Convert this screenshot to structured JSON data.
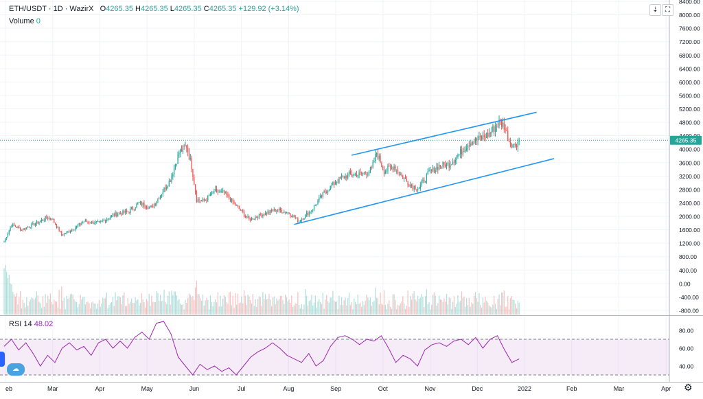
{
  "legend": {
    "symbol": "ETH/USDT · 1D · WazirX",
    "open_label": "O",
    "open": "4265.35",
    "high_label": "H",
    "high": "4265.35",
    "low_label": "L",
    "low": "4265.35",
    "close_label": "C",
    "close": "4265.35",
    "change": "+129.92 (+3.14%)",
    "volume_label": "Volume",
    "volume": "0"
  },
  "rsi_legend": {
    "label": "RSI 14",
    "value": "48.02"
  },
  "last_price_label": "4265.35",
  "colors": {
    "up": "#26a69a",
    "down": "#ef5350",
    "channel": "#2196f3",
    "rsi_line": "#9c27b0",
    "rsi_band": "#9c27b0",
    "last_price": "#26a69a"
  },
  "icons": {
    "arrow_down": "⇣",
    "maximize": "⛶",
    "settings": "⚙",
    "indicator": "☁"
  },
  "chart_data": [
    {
      "type": "candlestick",
      "title": "ETH/USDT · 1D · WazirX",
      "y_ticks": [
        "8400.00",
        "8000.00",
        "7600.00",
        "7200.00",
        "6800.00",
        "6400.00",
        "6000.00",
        "5600.00",
        "5200.00",
        "4800.00",
        "4400.00",
        "4000.00",
        "3600.00",
        "3200.00",
        "2800.00",
        "2400.00",
        "2000.00",
        "1600.00",
        "1200.00",
        "800.00",
        "400.00",
        "0.00",
        "-400.00",
        "-800.00"
      ],
      "y_range": [
        -800,
        8400
      ],
      "x_ticks": [
        "eb",
        "Mar",
        "Apr",
        "May",
        "Jun",
        "Jul",
        "Aug",
        "Sep",
        "Oct",
        "Nov",
        "Dec",
        "2022",
        "Feb",
        "Mar",
        "Apr"
      ],
      "anchors": [
        {
          "day": 0,
          "price": 1250
        },
        {
          "day": 6,
          "price": 1750
        },
        {
          "day": 14,
          "price": 1600
        },
        {
          "day": 26,
          "price": 1800
        },
        {
          "day": 34,
          "price": 1960
        },
        {
          "day": 38,
          "price": 1950
        },
        {
          "day": 46,
          "price": 1450
        },
        {
          "day": 54,
          "price": 1600
        },
        {
          "day": 64,
          "price": 1850
        },
        {
          "day": 76,
          "price": 1800
        },
        {
          "day": 88,
          "price": 2050
        },
        {
          "day": 100,
          "price": 2150
        },
        {
          "day": 108,
          "price": 2400
        },
        {
          "day": 118,
          "price": 2250
        },
        {
          "day": 126,
          "price": 2700
        },
        {
          "day": 133,
          "price": 3100
        },
        {
          "day": 140,
          "price": 3900
        },
        {
          "day": 146,
          "price": 4100
        },
        {
          "day": 150,
          "price": 3500
        },
        {
          "day": 154,
          "price": 2500
        },
        {
          "day": 160,
          "price": 2450
        },
        {
          "day": 168,
          "price": 2750
        },
        {
          "day": 176,
          "price": 2700
        },
        {
          "day": 186,
          "price": 2300
        },
        {
          "day": 196,
          "price": 1900
        },
        {
          "day": 206,
          "price": 2050
        },
        {
          "day": 218,
          "price": 2200
        },
        {
          "day": 228,
          "price": 2100
        },
        {
          "day": 236,
          "price": 1850
        },
        {
          "day": 246,
          "price": 2200
        },
        {
          "day": 256,
          "price": 2700
        },
        {
          "day": 266,
          "price": 3050
        },
        {
          "day": 276,
          "price": 3250
        },
        {
          "day": 286,
          "price": 3250
        },
        {
          "day": 294,
          "price": 3400
        },
        {
          "day": 298,
          "price": 3900
        },
        {
          "day": 304,
          "price": 3350
        },
        {
          "day": 312,
          "price": 3500
        },
        {
          "day": 318,
          "price": 3200
        },
        {
          "day": 326,
          "price": 2900
        },
        {
          "day": 332,
          "price": 2850
        },
        {
          "day": 340,
          "price": 3300
        },
        {
          "day": 348,
          "price": 3500
        },
        {
          "day": 356,
          "price": 3550
        },
        {
          "day": 364,
          "price": 3850
        },
        {
          "day": 372,
          "price": 4200
        },
        {
          "day": 380,
          "price": 4300
        },
        {
          "day": 388,
          "price": 4450
        },
        {
          "day": 396,
          "price": 4800
        },
        {
          "day": 400,
          "price": 4700
        },
        {
          "day": 404,
          "price": 4250
        },
        {
          "day": 408,
          "price": 4100
        },
        {
          "day": 412,
          "price": 4265
        }
      ],
      "channel": [
        {
          "from": {
            "day": 232,
            "price": 1760
          },
          "to": {
            "day": 440,
            "price": 3720
          }
        },
        {
          "from": {
            "day": 278,
            "price": 3820
          },
          "to": {
            "day": 426,
            "price": 5100
          }
        }
      ]
    },
    {
      "type": "line",
      "title": "RSI 14",
      "y_ticks": [
        "80.00",
        "60.00",
        "40.00"
      ],
      "y_range": [
        25,
        95
      ],
      "bands": [
        30,
        70
      ],
      "series": [
        {
          "name": "RSI 14",
          "values": [
            62,
            70,
            58,
            66,
            54,
            40,
            52,
            44,
            60,
            66,
            58,
            62,
            52,
            66,
            70,
            60,
            68,
            60,
            72,
            78,
            70,
            88,
            90,
            76,
            50,
            40,
            30,
            42,
            36,
            40,
            34,
            38,
            30,
            40,
            50,
            56,
            60,
            66,
            60,
            52,
            48,
            44,
            54,
            40,
            46,
            62,
            72,
            74,
            70,
            64,
            70,
            68,
            74,
            60,
            44,
            52,
            48,
            40,
            58,
            64,
            66,
            62,
            68,
            70,
            64,
            72,
            60,
            70,
            74,
            58,
            44,
            48
          ]
        }
      ]
    }
  ]
}
